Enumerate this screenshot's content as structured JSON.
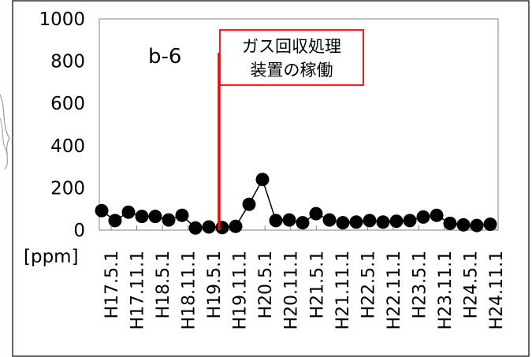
{
  "chart_data": {
    "type": "line",
    "panel_label": "b-6",
    "unit": "[ppm]",
    "ylim": [
      0,
      1000
    ],
    "yticks": [
      0,
      200,
      400,
      600,
      800,
      1000
    ],
    "x_tick_labels": [
      "H17.5.1",
      "H17.11.1",
      "H18.5.1",
      "H18.11.1",
      "H19.5.1",
      "H19.11.1",
      "H20.5.1",
      "H20.11.1",
      "H21.5.1",
      "H21.11.1",
      "H22.5.1",
      "H22.11.1",
      "H23.5.1",
      "H23.11.1",
      "H24.5.1",
      "H24.11.1"
    ],
    "series": [
      {
        "values": [
          92,
          45,
          85,
          65,
          65,
          48,
          70,
          10,
          15,
          12,
          18,
          122,
          240,
          45,
          48,
          35,
          78,
          48,
          35,
          38,
          45,
          38,
          42,
          45,
          62,
          70,
          32,
          25,
          22,
          28
        ]
      }
    ],
    "annotation": {
      "text_line1": "ガス回収処理",
      "text_line2": "装置の稼働",
      "line_color": "#ff0000",
      "box_border_color": "#ff0000"
    },
    "grid": "vertical-ticks-only",
    "marker_color": "#000000"
  }
}
